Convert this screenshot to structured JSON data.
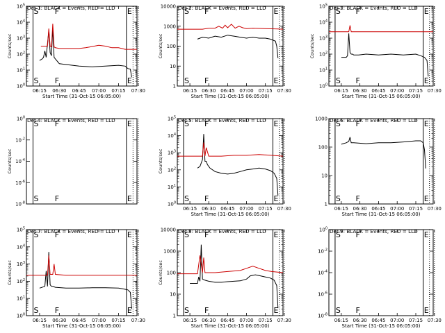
{
  "chart_data": [
    {
      "type": "line",
      "scale": "log",
      "title": "Det 1: BLACK = Events, RED = LLD",
      "ylabel": "Counts/sec",
      "xlabel": "Start Time (31-Oct-15 06:05:00)",
      "xticks": [
        "06:15",
        "06:30",
        "06:45",
        "07:00",
        "07:15",
        "07:30"
      ],
      "yticks": [
        "10^0",
        "10^1",
        "10^2",
        "10^3",
        "10^4",
        "10^5"
      ],
      "ylim_log": [
        0,
        5
      ],
      "markers": [
        {
          "text": "S",
          "t": 5
        },
        {
          "text": "F",
          "t": 21
        },
        {
          "text": "E",
          "t": 76
        }
      ],
      "series": [
        {
          "name": "Events",
          "color": "#000000",
          "x": [
            10,
            12,
            13,
            14,
            15,
            17,
            18,
            19,
            20,
            21,
            22,
            23,
            24,
            25,
            30,
            40,
            50,
            60,
            70,
            75,
            77,
            79,
            80
          ],
          "y": [
            1.6,
            1.7,
            1.8,
            2.2,
            1.8,
            3.5,
            2.1,
            1.9,
            3.6,
            1.8,
            1.7,
            1.6,
            1.5,
            1.4,
            1.35,
            1.25,
            1.2,
            1.25,
            1.3,
            1.25,
            1.1,
            1.05,
            0.55
          ]
        },
        {
          "name": "LLD",
          "color": "#cc0000",
          "x": [
            11,
            15,
            16,
            17,
            18,
            19,
            20,
            21,
            22,
            25,
            30,
            40,
            45,
            55,
            60,
            65,
            70,
            75,
            80,
            84
          ],
          "y": [
            2.5,
            2.5,
            2.5,
            3.6,
            2.5,
            2.45,
            3.9,
            2.45,
            2.4,
            2.35,
            2.35,
            2.35,
            2.4,
            2.55,
            2.5,
            2.4,
            2.4,
            2.3,
            2.3,
            2.3
          ]
        }
      ]
    },
    {
      "type": "line",
      "scale": "log",
      "title": "Det 2: BLACK = Events, RED = LLD",
      "ylabel": "Counts/sec",
      "xlabel": "Start Time (31-Oct-15 06:05:00)",
      "xticks": [
        "06:15",
        "06:30",
        "06:45",
        "07:00",
        "07:15",
        "07:30"
      ],
      "yticks": [
        "1",
        "10",
        "100",
        "1000",
        "10000"
      ],
      "ylim_log": [
        0,
        4
      ],
      "markers": [
        {
          "text": "S",
          "t": 5
        },
        {
          "text": "F",
          "t": 21
        },
        {
          "text": "E",
          "t": 76
        }
      ],
      "series": [
        {
          "name": "Events",
          "color": "#000000",
          "x": [
            16,
            18,
            20,
            25,
            30,
            35,
            40,
            45,
            50,
            55,
            60,
            65,
            70,
            74,
            76,
            78,
            79,
            80
          ],
          "y": [
            2.35,
            2.4,
            2.45,
            2.4,
            2.5,
            2.45,
            2.55,
            2.5,
            2.45,
            2.4,
            2.45,
            2.4,
            2.4,
            2.35,
            2.3,
            2.25,
            2.0,
            1.4
          ]
        },
        {
          "name": "LLD",
          "color": "#cc0000",
          "x": [
            0,
            10,
            20,
            25,
            30,
            33,
            36,
            38,
            40,
            43,
            46,
            49,
            52,
            55,
            60,
            70,
            80,
            84
          ],
          "y": [
            2.85,
            2.85,
            2.85,
            2.9,
            2.9,
            3.0,
            2.9,
            3.05,
            2.92,
            3.1,
            2.9,
            3.0,
            2.92,
            2.88,
            2.9,
            2.88,
            2.86,
            2.85
          ]
        }
      ]
    },
    {
      "type": "line",
      "scale": "log",
      "title": "Det 3: BLACK = Events, RED = LLD",
      "ylabel": "Counts/sec",
      "xlabel": "Start Time (31-Oct-15 06:05:00)",
      "xticks": [
        "06:15",
        "06:30",
        "06:45",
        "07:00",
        "07:15",
        "07:30"
      ],
      "yticks": [
        "10^0",
        "10^1",
        "10^2",
        "10^3",
        "10^4",
        "10^5"
      ],
      "ylim_log": [
        0,
        5
      ],
      "markers": [
        {
          "text": "S",
          "t": 5
        },
        {
          "text": "F",
          "t": 21
        },
        {
          "text": "E",
          "t": 76
        }
      ],
      "series": [
        {
          "name": "Events",
          "color": "#000000",
          "x": [
            10,
            14,
            15,
            16,
            17,
            18,
            19,
            20,
            24,
            30,
            40,
            50,
            60,
            70,
            74,
            77,
            79,
            80
          ],
          "y": [
            1.8,
            1.8,
            1.9,
            3.3,
            2.1,
            2.0,
            2.0,
            1.95,
            1.95,
            2.0,
            1.95,
            2.0,
            1.95,
            2.0,
            1.9,
            1.8,
            1.6,
            0.6
          ]
        },
        {
          "name": "LLD",
          "color": "#cc0000",
          "x": [
            0,
            10,
            16,
            17,
            18,
            30,
            50,
            70,
            84
          ],
          "y": [
            3.4,
            3.4,
            3.4,
            3.8,
            3.4,
            3.4,
            3.4,
            3.4,
            3.4
          ]
        }
      ]
    },
    {
      "type": "line",
      "scale": "log",
      "title": "Det 4: BLACK = Events, RED = LLD",
      "ylabel": "Counts/sec",
      "xlabel": "",
      "xticks": [],
      "yticks": [
        "10^-8",
        "10^-6",
        "10^-4",
        "10^-2",
        "10^0"
      ],
      "ylim_log": [
        -8,
        0
      ],
      "markers": [
        {
          "text": "S",
          "t": 5
        },
        {
          "text": "F",
          "t": 21
        },
        {
          "text": "E",
          "t": 76
        }
      ],
      "series": []
    },
    {
      "type": "line",
      "scale": "log",
      "title": "Det 5: BLACK = Events, RED = LLD",
      "ylabel": "Counts/sec",
      "xlabel": "Start Time (31-Oct-15 06:05:00)",
      "xticks": [
        "06:15",
        "06:30",
        "06:45",
        "07:00",
        "07:15",
        "07:30"
      ],
      "yticks": [
        "10^0",
        "10^1",
        "10^2",
        "10^3",
        "10^4",
        "10^5"
      ],
      "ylim_log": [
        0,
        5
      ],
      "markers": [
        {
          "text": "S",
          "t": 5
        },
        {
          "text": "F",
          "t": 21
        },
        {
          "text": "E",
          "t": 76
        }
      ],
      "series": [
        {
          "name": "Events",
          "color": "#000000",
          "x": [
            16,
            18,
            20,
            21,
            22,
            23,
            24,
            26,
            30,
            35,
            40,
            45,
            50,
            55,
            60,
            65,
            70,
            74,
            77,
            79,
            80
          ],
          "y": [
            2.1,
            2.2,
            2.6,
            4.1,
            2.5,
            2.5,
            2.3,
            2.1,
            1.9,
            1.8,
            1.75,
            1.8,
            1.9,
            2.0,
            2.05,
            2.1,
            2.05,
            1.95,
            1.8,
            1.5,
            0.5
          ]
        },
        {
          "name": "LLD",
          "color": "#cc0000",
          "x": [
            0,
            10,
            20,
            21,
            22,
            23,
            25,
            35,
            45,
            55,
            65,
            75,
            84
          ],
          "y": [
            2.8,
            2.8,
            2.8,
            3.6,
            2.8,
            3.3,
            2.8,
            2.8,
            2.85,
            2.85,
            2.9,
            2.85,
            2.8
          ]
        }
      ]
    },
    {
      "type": "line",
      "scale": "log",
      "title": "Det 6: BLACK = Events, RED = LLD",
      "ylabel": "",
      "xlabel": "Start Time (31-Oct-15 06:05:00)",
      "xticks": [
        "06:15",
        "06:30",
        "06:45",
        "07:00",
        "07:15",
        "07:30"
      ],
      "yticks": [
        "1",
        "10",
        "100",
        "1000"
      ],
      "ylim_log": [
        0,
        3
      ],
      "markers": [
        {
          "text": "S",
          "t": 5
        },
        {
          "text": "F",
          "t": 21
        },
        {
          "text": "E",
          "t": 76
        }
      ],
      "series": [
        {
          "name": "Events",
          "color": "#000000",
          "x": [
            10,
            14,
            16,
            17,
            18,
            20,
            30,
            40,
            50,
            60,
            70,
            74,
            76,
            77,
            78
          ],
          "y": [
            2.1,
            2.15,
            2.2,
            2.35,
            2.15,
            2.15,
            2.12,
            2.15,
            2.15,
            2.18,
            2.22,
            2.22,
            2.15,
            1.9,
            1.25
          ]
        }
      ]
    },
    {
      "type": "line",
      "scale": "log",
      "title": "Det 7: BLACK = Events, RED = LLD",
      "ylabel": "Counts/sec",
      "xlabel": "Start Time (31-Oct-15 06:05:00)",
      "xticks": [
        "06:15",
        "06:30",
        "06:45",
        "07:00",
        "07:15",
        "07:30"
      ],
      "yticks": [
        "10^0",
        "10^1",
        "10^2",
        "10^3",
        "10^4",
        "10^5"
      ],
      "ylim_log": [
        0,
        5
      ],
      "markers": [
        {
          "text": "S",
          "t": 5
        },
        {
          "text": "F",
          "t": 21
        },
        {
          "text": "E",
          "t": 76
        }
      ],
      "series": [
        {
          "name": "Events",
          "color": "#000000",
          "x": [
            10,
            14,
            15,
            16,
            17,
            18,
            19,
            20,
            22,
            30,
            40,
            50,
            60,
            70,
            74,
            77,
            79,
            80
          ],
          "y": [
            1.6,
            1.7,
            2.6,
            1.7,
            3.7,
            1.8,
            1.7,
            1.7,
            1.65,
            1.6,
            1.6,
            1.62,
            1.62,
            1.6,
            1.55,
            1.5,
            1.35,
            0.4
          ]
        },
        {
          "name": "LLD",
          "color": "#cc0000",
          "x": [
            0,
            10,
            16,
            17,
            18,
            20,
            21,
            22,
            30,
            50,
            70,
            84
          ],
          "y": [
            2.35,
            2.35,
            2.35,
            3.5,
            2.4,
            2.4,
            3.0,
            2.4,
            2.35,
            2.35,
            2.35,
            2.35
          ]
        }
      ]
    },
    {
      "type": "line",
      "scale": "log",
      "title": "Det 8: BLACK = Events, RED = LLD",
      "ylabel": "Counts/sec",
      "xlabel": "Start Time (31-Oct-15 06:05:00)",
      "xticks": [
        "06:15",
        "06:30",
        "06:45",
        "07:00",
        "07:15",
        "07:30"
      ],
      "yticks": [
        "1",
        "10",
        "100",
        "1000",
        "10000"
      ],
      "ylim_log": [
        0,
        4
      ],
      "markers": [
        {
          "text": "S",
          "t": 5
        },
        {
          "text": "F",
          "t": 21
        },
        {
          "text": "E",
          "t": 76
        }
      ],
      "series": [
        {
          "name": "Events",
          "color": "#000000",
          "x": [
            10,
            16,
            17,
            18,
            19,
            20,
            22,
            25,
            30,
            35,
            40,
            45,
            50,
            55,
            58,
            62,
            66,
            70,
            74,
            77,
            79,
            80
          ],
          "y": [
            1.5,
            1.5,
            1.8,
            1.6,
            3.3,
            1.7,
            1.65,
            1.6,
            1.55,
            1.55,
            1.58,
            1.6,
            1.62,
            1.7,
            1.85,
            1.9,
            1.85,
            1.8,
            1.75,
            1.65,
            1.4,
            0.35
          ]
        },
        {
          "name": "LLD",
          "color": "#cc0000",
          "x": [
            0,
            10,
            16,
            18,
            20,
            21,
            22,
            25,
            30,
            40,
            50,
            55,
            60,
            65,
            70,
            75,
            84
          ],
          "y": [
            1.95,
            1.95,
            1.95,
            2.8,
            2.0,
            2.7,
            2.0,
            2.0,
            2.0,
            2.05,
            2.1,
            2.2,
            2.3,
            2.2,
            2.1,
            2.05,
            2.0
          ]
        }
      ]
    },
    {
      "type": "line",
      "scale": "log",
      "title": "Det 9: BLACK = Events, RED = LLD",
      "ylabel": "",
      "xlabel": "Start Time (31-Oct-15 06:05:00)",
      "xticks": [
        "06:15",
        "06:30",
        "06:45",
        "07:00",
        "07:15",
        "07:30"
      ],
      "yticks": [
        "10^-8",
        "10^-6",
        "10^-4",
        "10^-2",
        "10^0"
      ],
      "ylim_log": [
        -8,
        0
      ],
      "markers": [
        {
          "text": "S",
          "t": 5
        },
        {
          "text": "F",
          "t": 21
        },
        {
          "text": "E",
          "t": 76
        }
      ],
      "series": []
    }
  ]
}
